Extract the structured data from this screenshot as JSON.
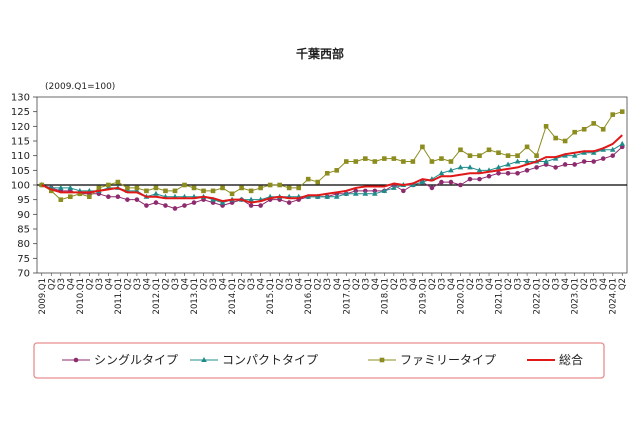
{
  "chart_data": {
    "type": "line",
    "title": "千葉西部",
    "index_note": "(2009.Q1=100)",
    "ylim": [
      70,
      130
    ],
    "ytick_step": 5,
    "reference_line": 100,
    "grid": false,
    "legend_placement": "bottom",
    "categories": [
      "2009.Q1",
      "Q2",
      "Q3",
      "Q4",
      "2010.Q1",
      "Q2",
      "Q3",
      "Q4",
      "2011.Q1",
      "Q2",
      "Q3",
      "Q4",
      "2012.Q1",
      "Q2",
      "Q3",
      "Q4",
      "2013.Q1",
      "Q2",
      "Q3",
      "Q4",
      "2014.Q1",
      "Q2",
      "Q3",
      "Q4",
      "2015.Q1",
      "Q2",
      "Q3",
      "Q4",
      "2016.Q1",
      "Q2",
      "Q3",
      "Q4",
      "2017.Q1",
      "Q2",
      "Q3",
      "Q4",
      "2018.Q1",
      "Q2",
      "Q3",
      "Q4",
      "2019.Q1",
      "Q2",
      "Q3",
      "Q4",
      "2020.Q1",
      "Q2",
      "Q3",
      "Q4",
      "2021.Q1",
      "Q2",
      "Q3",
      "Q4",
      "2022.Q1",
      "Q2",
      "Q3",
      "Q4",
      "2023.Q1",
      "Q2",
      "Q3",
      "Q4",
      "2024.Q1",
      "Q2"
    ],
    "series": [
      {
        "name": "シングルタイプ",
        "color": "#8e2a6e",
        "marker": "circle",
        "values": [
          100,
          99,
          98,
          98,
          97,
          97,
          97,
          96,
          96,
          95,
          95,
          93,
          94,
          93,
          92,
          93,
          94,
          95,
          94,
          93,
          94,
          95,
          93,
          93,
          95,
          95,
          94,
          95,
          96,
          96,
          96,
          97,
          97,
          98,
          98,
          98,
          98,
          100,
          98,
          100,
          101,
          99,
          101,
          101,
          100,
          102,
          102,
          103,
          104,
          104,
          104,
          105,
          106,
          107,
          106,
          107,
          107,
          108,
          108,
          109,
          110,
          113
        ]
      },
      {
        "name": "コンパクトタイプ",
        "color": "#1f8c8c",
        "marker": "triangle",
        "values": [
          100,
          99,
          99,
          99,
          98,
          98,
          98,
          99,
          99,
          98,
          98,
          96,
          97,
          96,
          96,
          96,
          96,
          96,
          95,
          94,
          95,
          95,
          95,
          95,
          96,
          96,
          96,
          96,
          96,
          96,
          96,
          96,
          97,
          97,
          97,
          97,
          98,
          99,
          100,
          100,
          101,
          102,
          104,
          105,
          106,
          106,
          105,
          105,
          106,
          107,
          108,
          108,
          108,
          108,
          109,
          110,
          110,
          111,
          111,
          112,
          112,
          114
        ]
      },
      {
        "name": "ファミリータイプ",
        "color": "#8c8c1f",
        "marker": "square",
        "values": [
          100,
          98,
          95,
          96,
          97,
          96,
          99,
          100,
          101,
          99,
          99,
          98,
          99,
          98,
          98,
          100,
          99,
          98,
          98,
          99,
          97,
          99,
          98,
          99,
          100,
          100,
          99,
          99,
          102,
          101,
          104,
          105,
          108,
          108,
          109,
          108,
          109,
          109,
          108,
          108,
          113,
          108,
          109,
          108,
          112,
          110,
          110,
          112,
          111,
          110,
          110,
          113,
          110,
          120,
          116,
          115,
          118,
          119,
          121,
          119,
          124,
          125
        ]
      },
      {
        "name": "総合",
        "color": "#e01818",
        "marker": "none",
        "values": [
          100,
          98.5,
          97.5,
          97.5,
          97.5,
          97.5,
          98,
          98.5,
          99,
          97.5,
          97.5,
          96,
          96,
          95.5,
          95.5,
          95.5,
          95.5,
          96,
          95.5,
          94.5,
          95,
          95,
          94,
          94.5,
          95.5,
          96,
          95.5,
          95.5,
          96.5,
          96.5,
          97,
          97.5,
          98,
          99,
          99.5,
          99.5,
          99.5,
          100.5,
          100,
          100.5,
          102,
          101.5,
          103,
          103,
          103.5,
          104,
          104,
          104.5,
          105,
          105.5,
          106,
          107,
          108,
          109.5,
          109.5,
          110.5,
          111,
          111.5,
          111.5,
          112.5,
          114,
          117
        ]
      }
    ]
  }
}
